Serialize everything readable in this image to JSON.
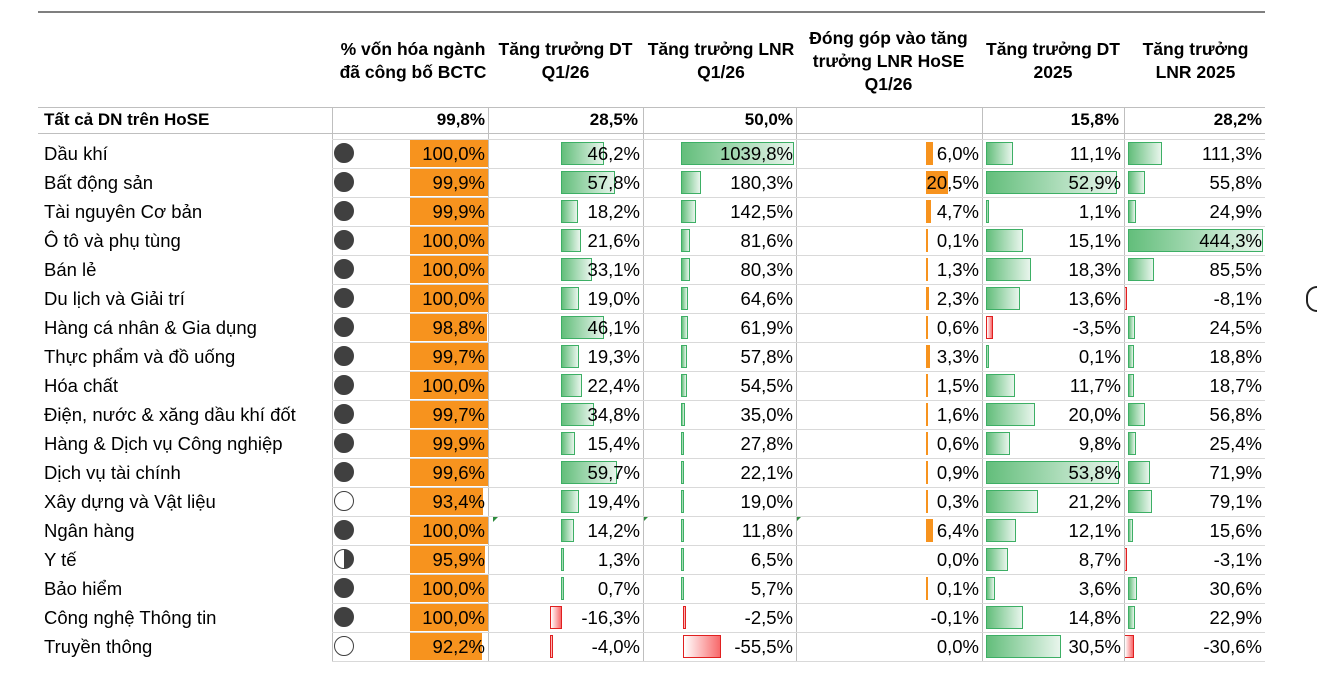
{
  "headers": {
    "pct_reported": "% vốn hóa ngành đã công bố BCTC",
    "rev_q1": "Tăng trưởng DT Q1/26",
    "np_q1": "Tăng trưởng LNR Q1/26",
    "contrib": "Đóng góp vào tăng trưởng LNR HoSE Q1/26",
    "rev_2025": "Tăng trưởng DT 2025",
    "np_2025": "Tăng trưởng LNR 2025"
  },
  "total_row": {
    "name": "Tất cả DN trên HoSE",
    "pct_reported": "99,8%",
    "rev_q1": "28,5%",
    "np_q1": "50,0%",
    "contrib": "",
    "rev_2025": "15,8%",
    "np_2025": "28,2%"
  },
  "rows": [
    {
      "name": "Dầu khí",
      "status": "full",
      "pct": "100,0%",
      "rev_q1": "46,2%",
      "np_q1": "1039,8%",
      "contrib": "6,0%",
      "rev_2025": "11,1%",
      "np_2025": "111,3%"
    },
    {
      "name": "Bất động sản",
      "status": "full",
      "pct": "99,9%",
      "rev_q1": "57,8%",
      "np_q1": "180,3%",
      "contrib": "20,5%",
      "rev_2025": "52,9%",
      "np_2025": "55,8%"
    },
    {
      "name": "Tài nguyên Cơ bản",
      "status": "full",
      "pct": "99,9%",
      "rev_q1": "18,2%",
      "np_q1": "142,5%",
      "contrib": "4,7%",
      "rev_2025": "1,1%",
      "np_2025": "24,9%"
    },
    {
      "name": "Ô tô và phụ tùng",
      "status": "full",
      "pct": "100,0%",
      "rev_q1": "21,6%",
      "np_q1": "81,6%",
      "contrib": "0,1%",
      "rev_2025": "15,1%",
      "np_2025": "444,3%"
    },
    {
      "name": "Bán lẻ",
      "status": "full",
      "pct": "100,0%",
      "rev_q1": "33,1%",
      "np_q1": "80,3%",
      "contrib": "1,3%",
      "rev_2025": "18,3%",
      "np_2025": "85,5%"
    },
    {
      "name": "Du lịch và Giải trí",
      "status": "full",
      "pct": "100,0%",
      "rev_q1": "19,0%",
      "np_q1": "64,6%",
      "contrib": "2,3%",
      "rev_2025": "13,6%",
      "np_2025": "-8,1%"
    },
    {
      "name": "Hàng cá nhân & Gia dụng",
      "status": "full",
      "pct": "98,8%",
      "rev_q1": "46,1%",
      "np_q1": "61,9%",
      "contrib": "0,6%",
      "rev_2025": "-3,5%",
      "np_2025": "24,5%"
    },
    {
      "name": "Thực phẩm và đồ uống",
      "status": "full",
      "pct": "99,7%",
      "rev_q1": "19,3%",
      "np_q1": "57,8%",
      "contrib": "3,3%",
      "rev_2025": "0,1%",
      "np_2025": "18,8%"
    },
    {
      "name": "Hóa chất",
      "status": "full",
      "pct": "100,0%",
      "rev_q1": "22,4%",
      "np_q1": "54,5%",
      "contrib": "1,5%",
      "rev_2025": "11,7%",
      "np_2025": "18,7%"
    },
    {
      "name": "Điện, nước & xăng dầu khí đốt",
      "status": "full",
      "pct": "99,7%",
      "rev_q1": "34,8%",
      "np_q1": "35,0%",
      "contrib": "1,6%",
      "rev_2025": "20,0%",
      "np_2025": "56,8%"
    },
    {
      "name": "Hàng & Dịch vụ Công nghiệp",
      "status": "full",
      "pct": "99,9%",
      "rev_q1": "15,4%",
      "np_q1": "27,8%",
      "contrib": "0,6%",
      "rev_2025": "9,8%",
      "np_2025": "25,4%"
    },
    {
      "name": "Dịch vụ tài chính",
      "status": "full",
      "pct": "99,6%",
      "rev_q1": "59,7%",
      "np_q1": "22,1%",
      "contrib": "0,9%",
      "rev_2025": "53,8%",
      "np_2025": "71,9%"
    },
    {
      "name": "Xây dựng và Vật liệu",
      "status": "empty",
      "pct": "93,4%",
      "rev_q1": "19,4%",
      "np_q1": "19,0%",
      "contrib": "0,3%",
      "rev_2025": "21,2%",
      "np_2025": "79,1%"
    },
    {
      "name": "Ngân hàng",
      "status": "full",
      "pct": "100,0%",
      "rev_q1": "14,2%",
      "np_q1": "11,8%",
      "contrib": "6,4%",
      "rev_2025": "12,1%",
      "np_2025": "15,6%"
    },
    {
      "name": "Y tế",
      "status": "half",
      "pct": "95,9%",
      "rev_q1": "1,3%",
      "np_q1": "6,5%",
      "contrib": "0,0%",
      "rev_2025": "8,7%",
      "np_2025": "-3,1%"
    },
    {
      "name": "Bảo hiểm",
      "status": "full",
      "pct": "100,0%",
      "rev_q1": "0,7%",
      "np_q1": "5,7%",
      "contrib": "0,1%",
      "rev_2025": "3,6%",
      "np_2025": "30,6%"
    },
    {
      "name": "Công nghệ Thông tin",
      "status": "full",
      "pct": "100,0%",
      "rev_q1": "-16,3%",
      "np_q1": "-2,5%",
      "contrib": "-0,1%",
      "rev_2025": "14,8%",
      "np_2025": "22,9%"
    },
    {
      "name": "Truyền thông",
      "status": "empty",
      "pct": "92,2%",
      "rev_q1": "-4,0%",
      "np_q1": "-55,5%",
      "contrib": "0,0%",
      "rev_2025": "30,5%",
      "np_2025": "-30,6%"
    }
  ],
  "colors": {
    "orange": "#f7931e",
    "green": "#63be7b",
    "red": "#f8696b",
    "dot": "#404040"
  }
}
